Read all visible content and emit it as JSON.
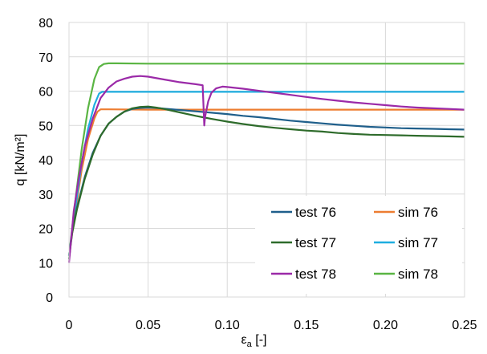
{
  "chart_data": {
    "type": "line",
    "title": "",
    "xlabel_main": "ε",
    "xlabel_sub": "a",
    "xlabel_unit": " [-]",
    "ylabel": "q [kN/m²]",
    "xlim": [
      0,
      0.25
    ],
    "ylim": [
      0,
      80
    ],
    "xticks": [
      0,
      0.05,
      0.1,
      0.15,
      0.2,
      0.25
    ],
    "xtick_labels": [
      "0",
      "0.05",
      "0.10",
      "0.15",
      "0.20",
      "0.25"
    ],
    "yticks": [
      0,
      10,
      20,
      30,
      40,
      50,
      60,
      70,
      80
    ],
    "ytick_labels": [
      "0",
      "10",
      "20",
      "30",
      "40",
      "50",
      "60",
      "70",
      "80"
    ],
    "grid": true,
    "legend_position": "bottom-right",
    "series": [
      {
        "name": "test 76",
        "color": "#1f5f8b",
        "x": [
          0,
          0.002,
          0.005,
          0.01,
          0.015,
          0.02,
          0.025,
          0.03,
          0.035,
          0.04,
          0.045,
          0.05,
          0.055,
          0.06,
          0.07,
          0.08,
          0.09,
          0.1,
          0.11,
          0.12,
          0.13,
          0.14,
          0.15,
          0.16,
          0.17,
          0.18,
          0.19,
          0.2,
          0.21,
          0.22,
          0.23,
          0.24,
          0.25
        ],
        "y": [
          12,
          19,
          26,
          35,
          42,
          47,
          50.5,
          52.5,
          54,
          54.8,
          55.1,
          55.2,
          55.1,
          54.9,
          54.5,
          54.1,
          53.7,
          53.3,
          52.8,
          52.4,
          51.9,
          51.4,
          51,
          50.6,
          50.2,
          49.9,
          49.6,
          49.4,
          49.2,
          49.1,
          49,
          48.9,
          48.8
        ]
      },
      {
        "name": "sim 76",
        "color": "#ed7d31",
        "x": [
          0,
          0.004,
          0.008,
          0.012,
          0.016,
          0.018,
          0.02,
          0.025,
          0.05,
          0.1,
          0.15,
          0.2,
          0.25
        ],
        "y": [
          12,
          25,
          37,
          46,
          52,
          54,
          54.7,
          54.7,
          54.6,
          54.6,
          54.6,
          54.6,
          54.6
        ]
      },
      {
        "name": "test 77",
        "color": "#2e6b2b",
        "x": [
          0,
          0.002,
          0.005,
          0.01,
          0.015,
          0.02,
          0.025,
          0.03,
          0.035,
          0.04,
          0.045,
          0.05,
          0.055,
          0.06,
          0.07,
          0.08,
          0.09,
          0.1,
          0.11,
          0.12,
          0.13,
          0.14,
          0.15,
          0.16,
          0.17,
          0.18,
          0.19,
          0.2,
          0.21,
          0.22,
          0.23,
          0.24,
          0.25
        ],
        "y": [
          11,
          18.5,
          25.5,
          34.5,
          41.5,
          47,
          50.5,
          52.5,
          54,
          55,
          55.4,
          55.5,
          55.2,
          54.8,
          53.8,
          52.8,
          51.9,
          51.1,
          50.4,
          49.8,
          49.3,
          48.9,
          48.5,
          48.2,
          47.8,
          47.5,
          47.3,
          47.2,
          47.1,
          47,
          46.9,
          46.8,
          46.7
        ]
      },
      {
        "name": "sim 77",
        "color": "#1eaee0",
        "x": [
          0,
          0.004,
          0.008,
          0.012,
          0.016,
          0.019,
          0.021,
          0.025,
          0.05,
          0.1,
          0.15,
          0.2,
          0.25
        ],
        "y": [
          12,
          26,
          39,
          49,
          56,
          59.3,
          59.8,
          59.8,
          59.8,
          59.8,
          59.8,
          59.8,
          59.8
        ]
      },
      {
        "name": "test 78",
        "color": "#9b2aa8",
        "x": [
          0,
          0.003,
          0.006,
          0.01,
          0.015,
          0.02,
          0.025,
          0.03,
          0.035,
          0.04,
          0.045,
          0.05,
          0.06,
          0.07,
          0.08,
          0.0845,
          0.0855,
          0.086,
          0.088,
          0.09,
          0.093,
          0.097,
          0.1,
          0.11,
          0.12,
          0.13,
          0.14,
          0.15,
          0.16,
          0.17,
          0.18,
          0.19,
          0.2,
          0.21,
          0.22,
          0.23,
          0.24,
          0.25
        ],
        "y": [
          10,
          25,
          34,
          44,
          52,
          58,
          61,
          62.8,
          63.6,
          64.2,
          64.4,
          64.2,
          63.4,
          62.6,
          62,
          61.7,
          50,
          52.5,
          57,
          59.5,
          60.8,
          61.3,
          61.2,
          60.7,
          60.1,
          59.5,
          58.9,
          58.3,
          57.7,
          57.2,
          56.7,
          56.3,
          55.9,
          55.5,
          55.2,
          55,
          54.8,
          54.6
        ]
      },
      {
        "name": "sim 78",
        "color": "#5ab543",
        "x": [
          0,
          0.004,
          0.008,
          0.012,
          0.016,
          0.019,
          0.022,
          0.025,
          0.03,
          0.05,
          0.1,
          0.15,
          0.2,
          0.25
        ],
        "y": [
          12,
          28,
          43,
          55,
          63.5,
          67,
          67.9,
          68.1,
          68.1,
          68,
          68,
          68,
          68,
          68
        ]
      }
    ]
  }
}
